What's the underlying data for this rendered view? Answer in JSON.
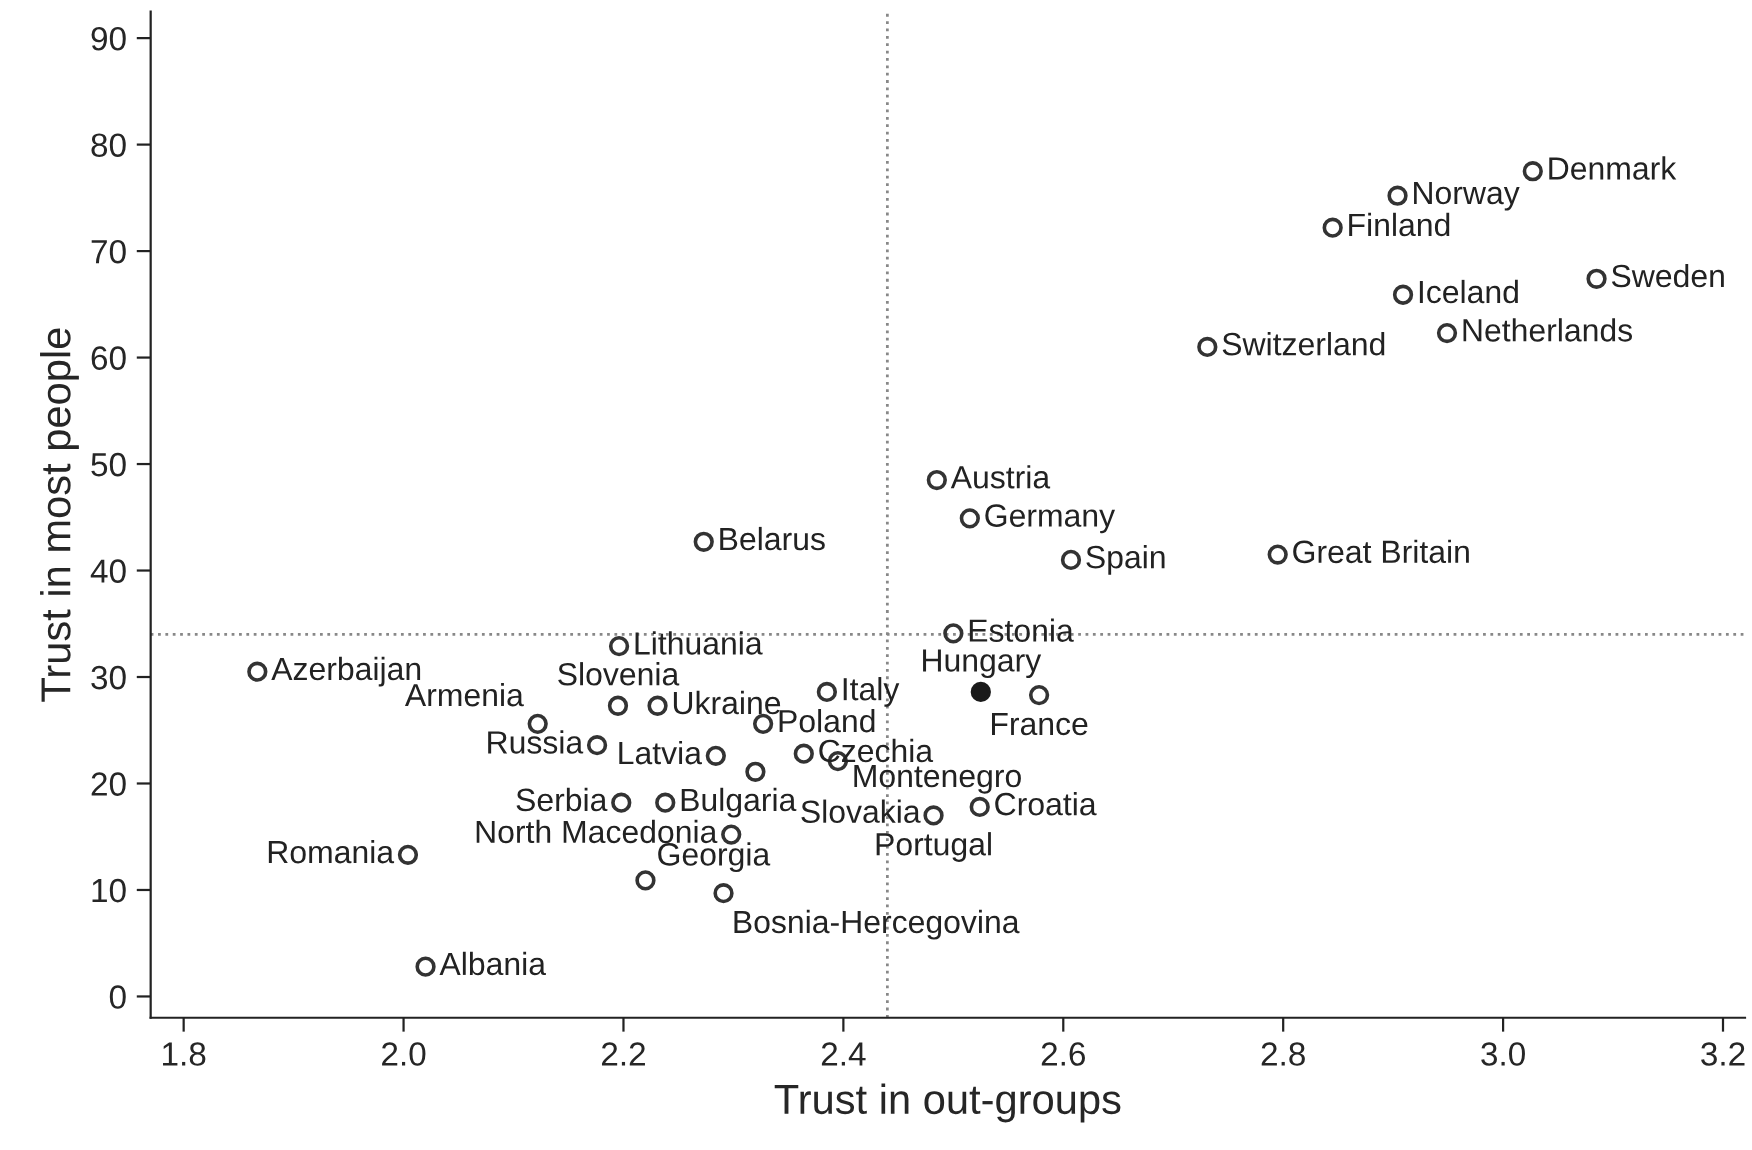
{
  "chart_data": {
    "type": "scatter",
    "xlabel": "Trust in out-groups",
    "ylabel": "Trust in most people",
    "xlim": [
      1.77,
      3.22
    ],
    "ylim": [
      -2,
      92.5
    ],
    "xticks": [
      {
        "value": 1.8,
        "label": "1.8"
      },
      {
        "value": 2.0,
        "label": "2.0"
      },
      {
        "value": 2.2,
        "label": "2.2"
      },
      {
        "value": 2.4,
        "label": "2.4"
      },
      {
        "value": 2.6,
        "label": "2.6"
      },
      {
        "value": 2.8,
        "label": "2.8"
      },
      {
        "value": 3.0,
        "label": "3.0"
      },
      {
        "value": 3.2,
        "label": "3.2"
      }
    ],
    "yticks": [
      0,
      10,
      20,
      30,
      40,
      50,
      60,
      70,
      80,
      90
    ],
    "grid": false,
    "legend": false,
    "marker": "circle",
    "series": [
      {
        "color": "#333333",
        "x": [
          3.027,
          2.904,
          2.845,
          3.085,
          2.909,
          2.949,
          2.731,
          2.485,
          2.515,
          2.607,
          2.795,
          2.273,
          2.5,
          2.578,
          2.385,
          2.196,
          1.867,
          2.195,
          2.231,
          2.122,
          2.327,
          2.176,
          2.284,
          2.364,
          2.32,
          2.395,
          2.482,
          2.524,
          2.291,
          2.22,
          2.298,
          2.238,
          2.198,
          2.004,
          2.02
        ],
        "values": [
          77.5,
          75.2,
          72.2,
          67.4,
          65.9,
          62.3,
          61.0,
          48.5,
          44.9,
          41.0,
          41.5,
          42.7,
          34.1,
          28.3,
          28.6,
          32.9,
          30.5,
          27.3,
          27.3,
          25.6,
          25.6,
          23.6,
          22.6,
          22.8,
          21.1,
          22.1,
          17.0,
          17.8,
          9.7,
          10.9,
          15.2,
          18.2,
          18.2,
          13.3,
          2.8
        ]
      },
      {
        "color": "#1a1a1a",
        "x": [
          2.525
        ],
        "values": [
          28.6
        ]
      }
    ],
    "ref_lines": [
      {
        "axis": "x",
        "value": 2.44,
        "color": "#888888",
        "line_style": "dotted"
      },
      {
        "axis": "y",
        "value": 34,
        "color": "#888888",
        "line_style": "dotted"
      }
    ],
    "annotations": [
      {
        "text": "Denmark",
        "x": 3.027,
        "y": 77.5
      },
      {
        "text": "Norway",
        "x": 2.904,
        "y": 75.2
      },
      {
        "text": "Finland",
        "x": 2.845,
        "y": 72.2
      },
      {
        "text": "Sweden",
        "x": 3.085,
        "y": 67.4
      },
      {
        "text": "Iceland",
        "x": 2.909,
        "y": 65.9
      },
      {
        "text": "Netherlands",
        "x": 2.949,
        "y": 62.3
      },
      {
        "text": "Switzerland",
        "x": 2.731,
        "y": 61.0
      },
      {
        "text": "Austria",
        "x": 2.485,
        "y": 48.5
      },
      {
        "text": "Germany",
        "x": 2.515,
        "y": 44.9
      },
      {
        "text": "Spain",
        "x": 2.607,
        "y": 41.0
      },
      {
        "text": "Great Britain",
        "x": 2.795,
        "y": 41.5
      },
      {
        "text": "Belarus",
        "x": 2.273,
        "y": 42.7
      },
      {
        "text": "Estonia",
        "x": 2.5,
        "y": 34.1
      },
      {
        "text": "France",
        "x": 2.578,
        "y": 28.3
      },
      {
        "text": "Italy",
        "x": 2.385,
        "y": 28.6
      },
      {
        "text": "Lithuania",
        "x": 2.196,
        "y": 32.9
      },
      {
        "text": "Azerbaijan",
        "x": 1.867,
        "y": 30.5
      },
      {
        "text": "Slovenia",
        "x": 2.195,
        "y": 27.3
      },
      {
        "text": "Ukraine",
        "x": 2.231,
        "y": 27.3
      },
      {
        "text": "Armenia",
        "x": 2.122,
        "y": 25.6
      },
      {
        "text": "Poland",
        "x": 2.327,
        "y": 25.6
      },
      {
        "text": "Russia",
        "x": 2.176,
        "y": 23.6
      },
      {
        "text": "Latvia",
        "x": 2.284,
        "y": 22.6
      },
      {
        "text": "Czechia",
        "x": 2.364,
        "y": 22.8
      },
      {
        "text": "Slovakia",
        "x": 2.32,
        "y": 21.1
      },
      {
        "text": "Montenegro",
        "x": 2.395,
        "y": 22.1
      },
      {
        "text": "Portugal",
        "x": 2.482,
        "y": 17.0
      },
      {
        "text": "Croatia",
        "x": 2.524,
        "y": 17.8
      },
      {
        "text": "Bosnia-Hercegovina",
        "x": 2.291,
        "y": 9.7
      },
      {
        "text": "Georgia",
        "x": 2.22,
        "y": 10.9
      },
      {
        "text": "North Macedonia",
        "x": 2.298,
        "y": 15.2
      },
      {
        "text": "Bulgaria",
        "x": 2.238,
        "y": 18.2
      },
      {
        "text": "Serbia",
        "x": 2.198,
        "y": 18.2
      },
      {
        "text": "Romania",
        "x": 2.004,
        "y": 13.3
      },
      {
        "text": "Albania",
        "x": 2.02,
        "y": 2.8
      },
      {
        "text": "Hungary",
        "x": 2.525,
        "y": 28.6
      }
    ]
  }
}
